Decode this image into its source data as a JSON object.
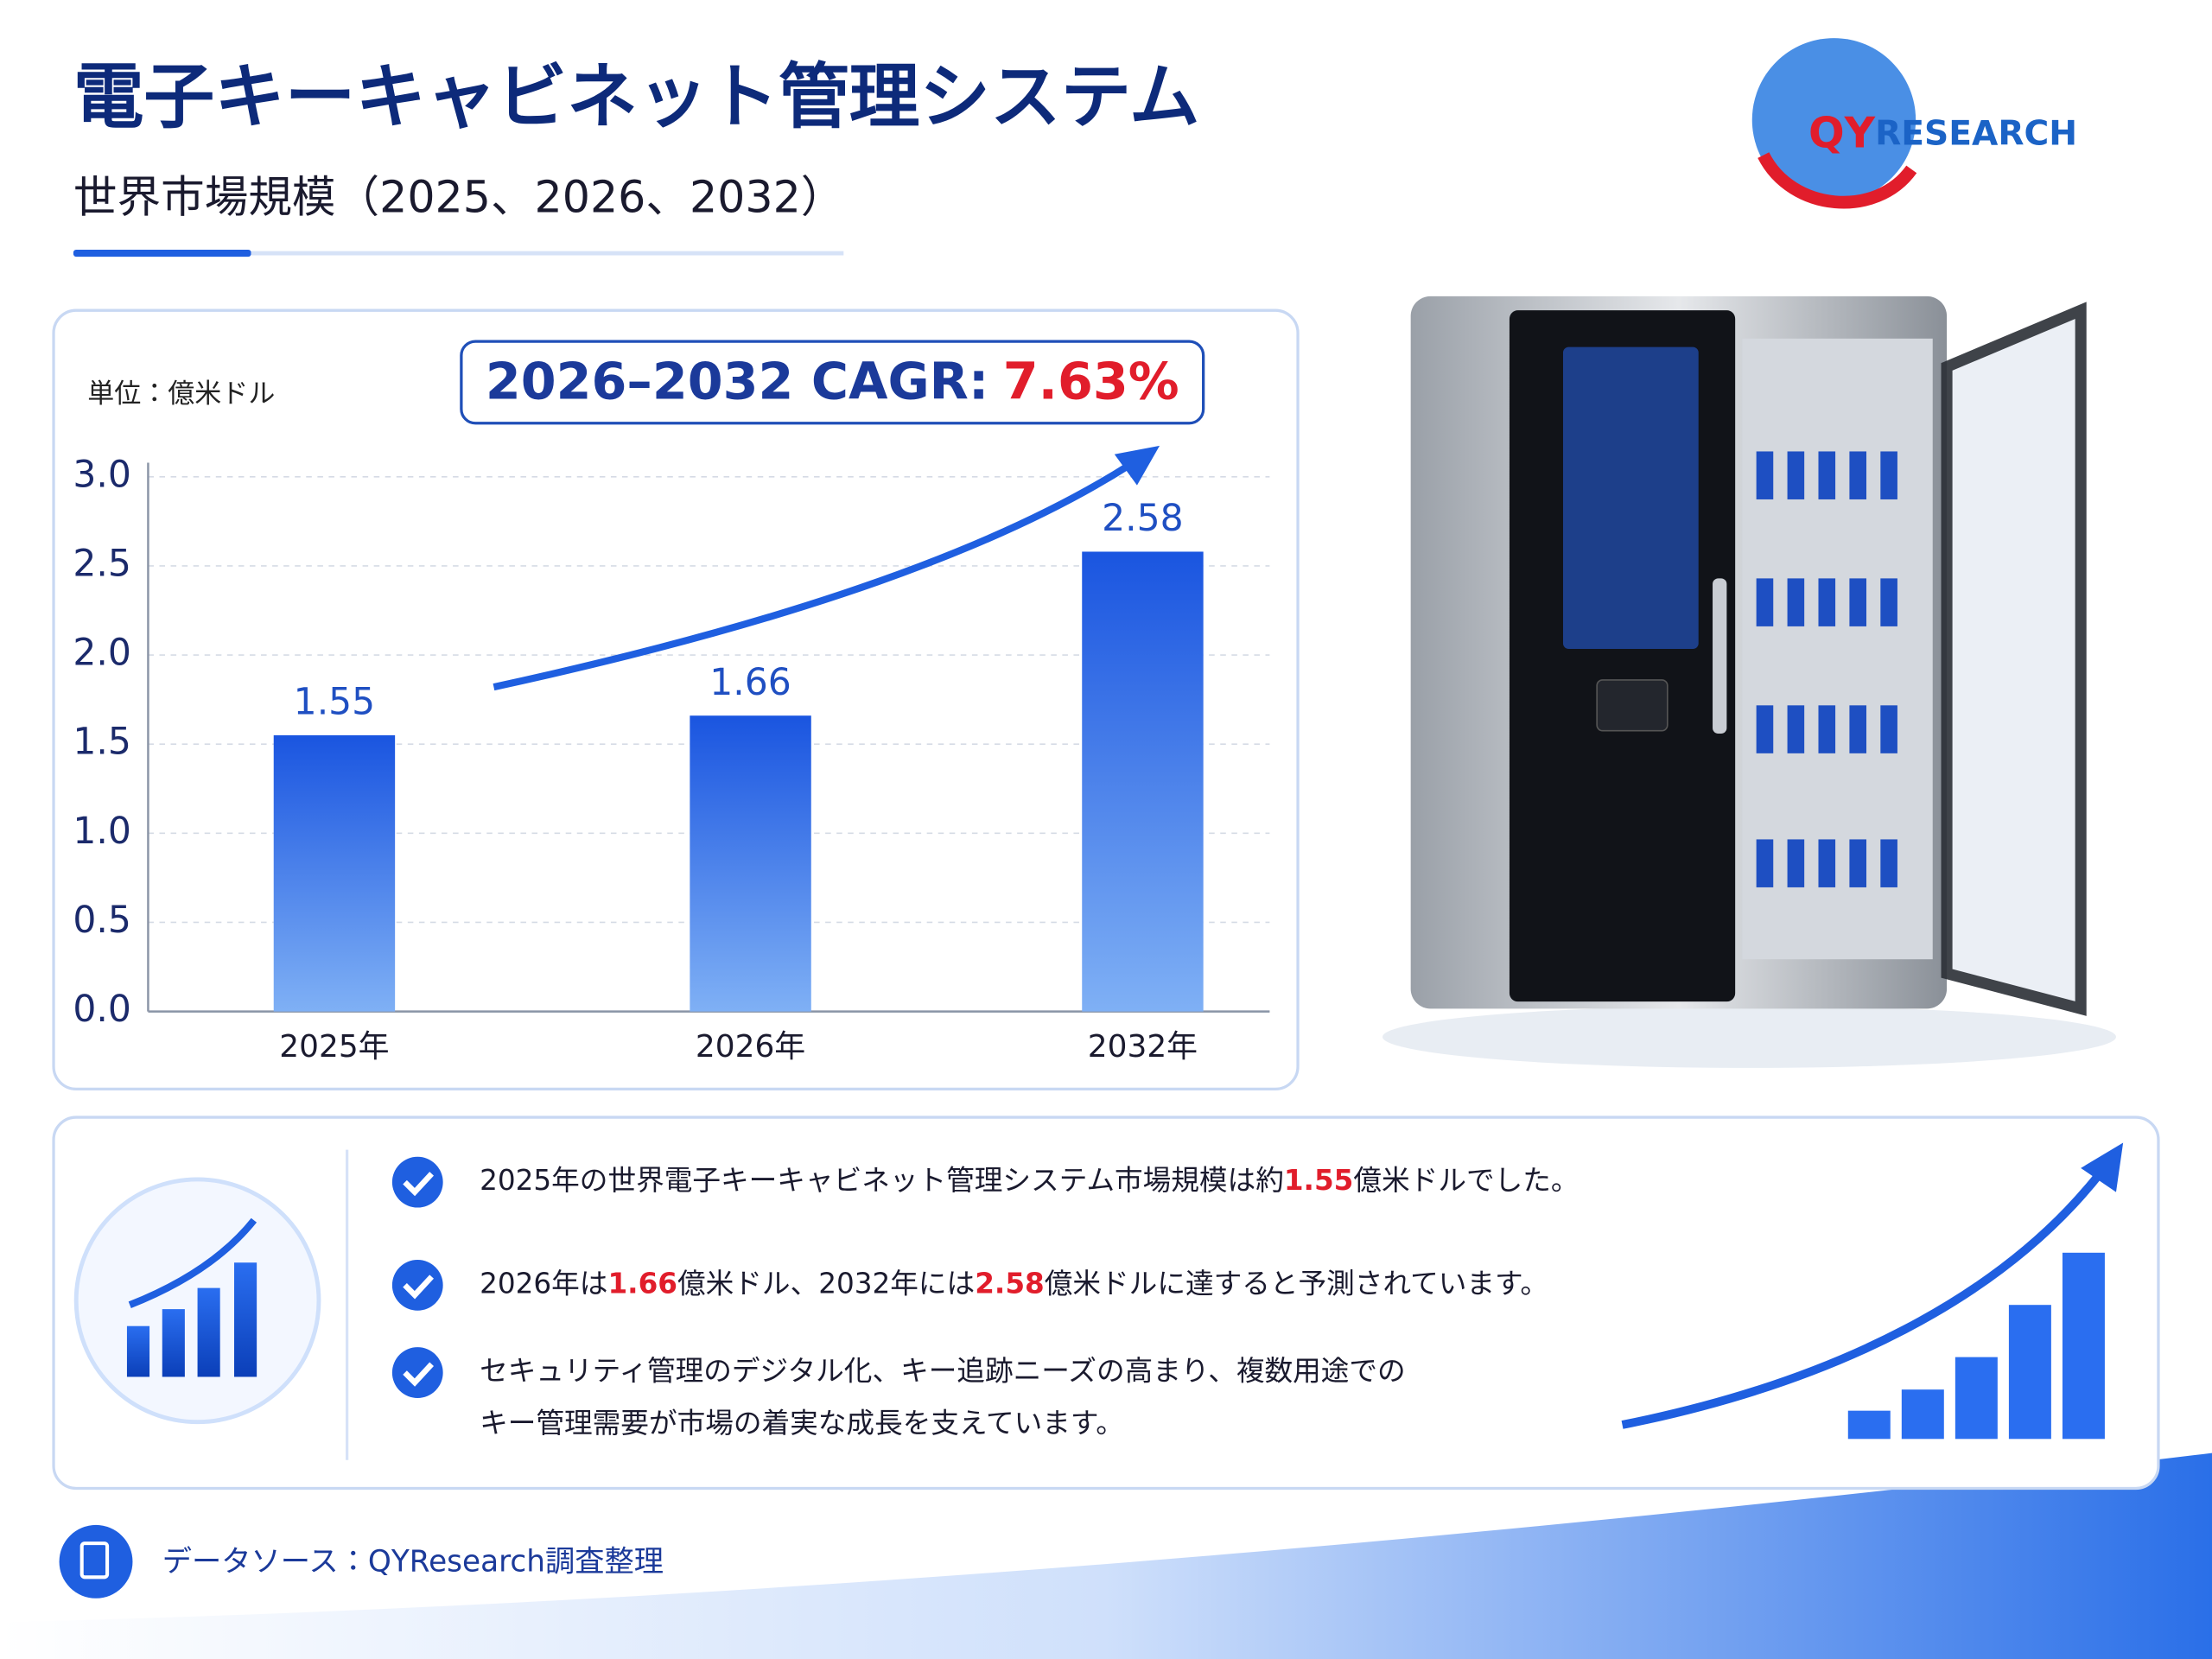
{
  "chart_data": {
    "type": "bar",
    "title": "電子キーキャビネット管理システム",
    "subtitle": "世界市場規模（2025、2026、2032）",
    "unit": "単位：億米ドル",
    "cagr_label": "2026–2032 CAGR:",
    "cagr_value": "7.63%",
    "categories": [
      "2025年",
      "2026年",
      "2032年"
    ],
    "values": [
      1.55,
      1.66,
      2.58
    ],
    "color": "#1f5fe0",
    "ylim": [
      0,
      3
    ],
    "yticks": [
      {
        "value": 0,
        "label": "0.0"
      },
      0.5,
      {
        "value": 1,
        "label": "1.0"
      },
      1.5,
      {
        "value": 2,
        "label": "2.0"
      },
      2.5,
      {
        "value": 3,
        "label": "3.0"
      }
    ],
    "grid": true
  },
  "bullets": [
    [
      [
        "2025年の世界電子キーキャビネット管理システム市場規模は約",
        "1.55",
        "億米ドルでした。"
      ]
    ],
    [
      [
        "2026年は",
        "1.66",
        "億米ドル、2032年には",
        "2.58",
        "億米ドルに達すると予測されています。"
      ]
    ],
    [
      [
        "セキュリティ管理のデジタル化、キー追跡ニーズの高まり、複数用途での"
      ],
      [
        "キー管理需要が市場の着実な成長を支えています。"
      ]
    ]
  ],
  "source": "データソース：QYResearch調査整理",
  "logo": [
    "QY",
    "RESEARCH"
  ]
}
